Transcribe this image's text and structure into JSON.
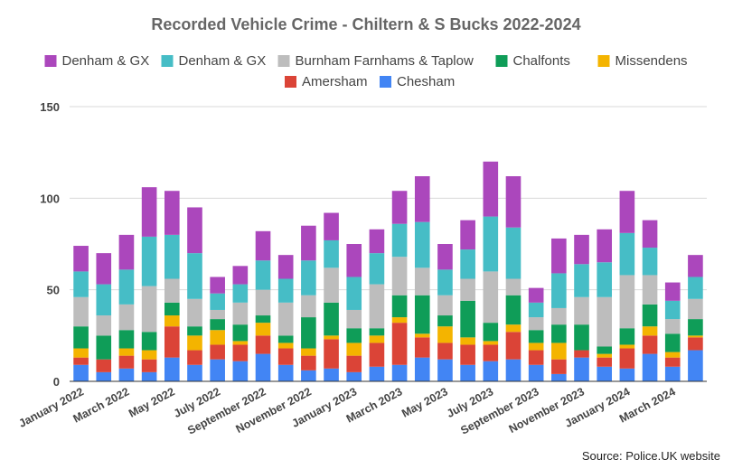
{
  "chart_data": {
    "type": "bar",
    "stacked": true,
    "title": "Recorded Vehicle Crime - Chiltern & S Bucks 2022-2024",
    "source": "Source: Police.UK website",
    "ylim": [
      0,
      150
    ],
    "yticks": [
      0,
      50,
      100,
      150
    ],
    "grid": true,
    "legend_placement": "top",
    "x_tick_labels": [
      "January 2022",
      "March 2022",
      "May 2022",
      "July 2022",
      "September 2022",
      "November 2022",
      "January 2023",
      "March 2023",
      "May 2023",
      "July 2023",
      "September 2023",
      "November 2023",
      "January 2024",
      "March 2024"
    ],
    "categories": [
      "Jan 2022",
      "Feb 2022",
      "Mar 2022",
      "Apr 2022",
      "May 2022",
      "Jun 2022",
      "Jul 2022",
      "Aug 2022",
      "Sep 2022",
      "Oct 2022",
      "Nov 2022",
      "Dec 2022",
      "Jan 2023",
      "Feb 2023",
      "Mar 2023",
      "Apr 2023",
      "May 2023",
      "Jun 2023",
      "Jul 2023",
      "Aug 2023",
      "Sep 2023",
      "Oct 2023",
      "Nov 2023",
      "Dec 2023",
      "Jan 2024",
      "Feb 2024",
      "Mar 2024",
      "Apr 2024"
    ],
    "series": [
      {
        "name": "Chesham",
        "color": "#4285f4",
        "values": [
          9,
          5,
          7,
          5,
          13,
          9,
          12,
          11,
          15,
          9,
          6,
          7,
          5,
          8,
          9,
          13,
          12,
          9,
          11,
          12,
          9,
          4,
          13,
          8,
          7,
          15,
          8,
          17
        ]
      },
      {
        "name": "Amersham",
        "color": "#db4437",
        "values": [
          4,
          7,
          7,
          7,
          17,
          8,
          8,
          9,
          10,
          9,
          8,
          16,
          9,
          13,
          23,
          11,
          9,
          11,
          9,
          15,
          8,
          8,
          4,
          5,
          11,
          10,
          5,
          7
        ]
      },
      {
        "name": "Missendens",
        "color": "#f4b400",
        "values": [
          5,
          0,
          4,
          5,
          6,
          8,
          8,
          2,
          7,
          3,
          4,
          2,
          7,
          4,
          3,
          2,
          9,
          4,
          2,
          4,
          4,
          9,
          0,
          2,
          2,
          5,
          3,
          1
        ]
      },
      {
        "name": "Chalfonts",
        "color": "#0f9d58",
        "values": [
          12,
          13,
          10,
          10,
          7,
          5,
          6,
          9,
          4,
          4,
          17,
          18,
          8,
          4,
          12,
          21,
          6,
          20,
          10,
          16,
          7,
          10,
          14,
          4,
          9,
          12,
          10,
          9
        ]
      },
      {
        "name": "Burnham Farnhams & Taplow",
        "color": "#bdbdbd",
        "values": [
          16,
          11,
          14,
          25,
          13,
          15,
          5,
          12,
          14,
          18,
          12,
          19,
          10,
          24,
          21,
          15,
          11,
          12,
          28,
          9,
          7,
          9,
          15,
          27,
          29,
          16,
          8,
          11
        ]
      },
      {
        "name": "Denham & GX",
        "color": "#46bdc6",
        "values": [
          14,
          17,
          19,
          27,
          24,
          25,
          9,
          10,
          16,
          13,
          19,
          15,
          18,
          17,
          18,
          25,
          14,
          16,
          30,
          28,
          8,
          19,
          18,
          19,
          23,
          15,
          10,
          12
        ]
      },
      {
        "name": "Denham & GX",
        "color": "#ab47bc",
        "values": [
          14,
          17,
          19,
          27,
          24,
          25,
          9,
          10,
          16,
          13,
          19,
          15,
          18,
          13,
          18,
          25,
          14,
          16,
          30,
          28,
          8,
          19,
          16,
          18,
          23,
          15,
          10,
          12
        ]
      }
    ]
  },
  "legend": [
    {
      "label": "Denham & GX",
      "color": "#ab47bc"
    },
    {
      "label": "Denham & GX",
      "color": "#46bdc6"
    },
    {
      "label": "Burnham Farnhams & Taplow",
      "color": "#bdbdbd"
    },
    {
      "label": "Chalfonts",
      "color": "#0f9d58"
    },
    {
      "label": "Missendens",
      "color": "#f4b400"
    },
    {
      "label": "Amersham",
      "color": "#db4437"
    },
    {
      "label": "Chesham",
      "color": "#4285f4"
    }
  ]
}
